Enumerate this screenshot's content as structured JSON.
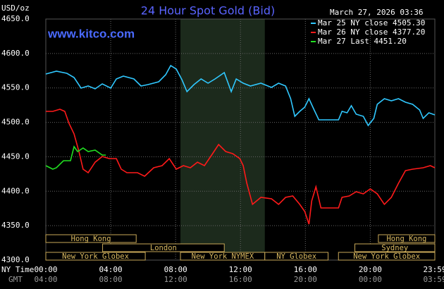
{
  "chart_data": {
    "type": "line",
    "title": "24 Hour Spot Gold (Bid)",
    "y_label": "USD/oz",
    "timestamp": "March 27, 2026 03:36",
    "source": "www.kitco.com",
    "x_label": "NY Time",
    "x2_label": "GMT",
    "xlim": [
      0,
      23.98
    ],
    "ylim": [
      4300,
      4650
    ],
    "grid": true,
    "legend": "top-right",
    "xticks": [
      {
        "value": 0,
        "label": "00:00"
      },
      {
        "value": 4,
        "label": "04:00"
      },
      {
        "value": 8,
        "label": "08:00"
      },
      {
        "value": 12,
        "label": "12:00"
      },
      {
        "value": 16,
        "label": "16:00"
      },
      {
        "value": 20,
        "label": "20:00"
      },
      {
        "value": 23.98,
        "label": "23:59"
      }
    ],
    "x2ticks": [
      {
        "value": 0,
        "label": "04:00"
      },
      {
        "value": 4,
        "label": "08:00"
      },
      {
        "value": 8,
        "label": "12:00"
      },
      {
        "value": 12,
        "label": "16:00"
      },
      {
        "value": 16,
        "label": "20:00"
      },
      {
        "value": 20,
        "label": "00:00"
      },
      {
        "value": 23.98,
        "label": "03:59"
      }
    ],
    "yticks": [
      {
        "value": 4300,
        "label": "4300.0"
      },
      {
        "value": 4350,
        "label": "4350.0"
      },
      {
        "value": 4400,
        "label": "4400.0"
      },
      {
        "value": 4450,
        "label": "4450.0"
      },
      {
        "value": 4500,
        "label": "4500.0"
      },
      {
        "value": 4550,
        "label": "4550.0"
      },
      {
        "value": 4600,
        "label": "4600.0"
      },
      {
        "value": 4650,
        "label": "4650.0"
      }
    ],
    "sessions": [
      {
        "label": "Hong Kong",
        "row": 1,
        "start": 0,
        "end": 5.57
      },
      {
        "label": "Hong Kong",
        "row": 1,
        "start": 20.5,
        "end": 23.98
      },
      {
        "label": "London",
        "row": 2,
        "start": 3.5,
        "end": 11
      },
      {
        "label": "Sydney",
        "row": 2,
        "start": 19.05,
        "end": 23.98
      },
      {
        "label": "New York Globex",
        "row": 3,
        "start": 0,
        "end": 6.13
      },
      {
        "label": "New York NYMEX",
        "row": 3,
        "start": 8.3,
        "end": 13.5,
        "shaded": true
      },
      {
        "label": "NY Globex",
        "row": 3,
        "start": 13.5,
        "end": 17.4
      },
      {
        "label": "New York Globex",
        "row": 3,
        "start": 18.04,
        "end": 23.98
      }
    ],
    "series": [
      {
        "name": "Mar 25 NY close 4505.30",
        "color": "#30c8ff",
        "x": [
          0,
          0.65,
          1.3,
          1.74,
          2.17,
          2.61,
          3.04,
          3.48,
          4,
          4.35,
          4.78,
          5.43,
          5.87,
          6.3,
          6.96,
          7.39,
          7.7,
          8.04,
          8.39,
          8.7,
          9.13,
          9.57,
          10,
          10.43,
          11,
          11.43,
          11.74,
          12.17,
          12.61,
          13.26,
          13.91,
          14.35,
          14.78,
          15.09,
          15.35,
          15.65,
          15.96,
          16.22,
          16.52,
          16.83,
          18.04,
          18.26,
          18.57,
          18.83,
          19.13,
          19.57,
          19.87,
          20.22,
          20.43,
          20.87,
          21.3,
          21.74,
          22.17,
          22.61,
          23.04,
          23.26,
          23.61,
          23.98
        ],
        "values": [
          4570.2,
          4574.3,
          4571.2,
          4565.1,
          4549.7,
          4552.8,
          4548.7,
          4555.8,
          4549.7,
          4563.0,
          4567.1,
          4563.0,
          4552.8,
          4554.8,
          4558.9,
          4569.2,
          4582.5,
          4577.3,
          4562.0,
          4544.6,
          4554.8,
          4563.0,
          4556.9,
          4563.0,
          4572.2,
          4544.6,
          4563.0,
          4556.9,
          4552.8,
          4556.9,
          4550.7,
          4556.9,
          4552.8,
          4534.4,
          4508.8,
          4515.9,
          4522.1,
          4534.4,
          4519.0,
          4503.7,
          4503.7,
          4515.9,
          4513.9,
          4524.1,
          4511.8,
          4508.8,
          4495.5,
          4505.7,
          4526.2,
          4534.4,
          4531.3,
          4534.4,
          4529.2,
          4526.2,
          4518.0,
          4505.7,
          4513.9,
          4510.8
        ]
      },
      {
        "name": "Mar 26 NY close 4377.20",
        "color": "#ff1a1a",
        "x": [
          0,
          0.43,
          0.87,
          1.17,
          1.43,
          1.74,
          2.04,
          2.3,
          2.61,
          3.04,
          3.48,
          3.91,
          4.35,
          4.65,
          5,
          5.65,
          6.09,
          6.65,
          7.17,
          7.61,
          8.04,
          8.48,
          8.91,
          9.35,
          9.78,
          10.22,
          10.65,
          11.09,
          11.52,
          11.96,
          12.17,
          12.39,
          12.74,
          13.26,
          13.91,
          14.35,
          14.78,
          15.22,
          15.65,
          15.96,
          16.22,
          16.39,
          16.65,
          16.96,
          17.17,
          18.04,
          18.26,
          18.7,
          19.13,
          19.57,
          20,
          20.43,
          20.87,
          21.3,
          21.74,
          22.17,
          22.61,
          23.26,
          23.7,
          23.98
        ],
        "values": [
          4515.9,
          4515.9,
          4519.0,
          4515.9,
          4498.5,
          4483.2,
          4457.6,
          4432.0,
          4426.9,
          4442.2,
          4450.4,
          4447.4,
          4447.4,
          4432.0,
          4426.9,
          4426.9,
          4421.8,
          4434.1,
          4437.1,
          4447.4,
          4432.0,
          4437.1,
          4434.1,
          4442.2,
          4437.1,
          4452.5,
          4467.8,
          4457.6,
          4454.5,
          4447.4,
          4437.1,
          4411.5,
          4380.9,
          4391.1,
          4389.0,
          4380.9,
          4391.1,
          4393.1,
          4380.9,
          4370.6,
          4352.2,
          4386.0,
          4406.4,
          4375.7,
          4375.7,
          4375.7,
          4391.1,
          4393.1,
          4399.3,
          4396.2,
          4403.4,
          4396.2,
          4380.9,
          4391.1,
          4411.5,
          4429.9,
          4432.0,
          4434.1,
          4437.1,
          4434.1
        ]
      },
      {
        "name": "Mar 27 Last 4451.20",
        "color": "#22e022",
        "x": [
          0,
          0.43,
          0.65,
          1.09,
          1.52,
          1.74,
          1.96,
          2.3,
          2.61,
          3.04,
          3.48,
          3.7
        ],
        "values": [
          4437.1,
          4432.0,
          4434.1,
          4444.3,
          4444.3,
          4464.8,
          4457.6,
          4462.7,
          4457.6,
          4459.6,
          4452.5,
          4452.5
        ]
      }
    ]
  }
}
